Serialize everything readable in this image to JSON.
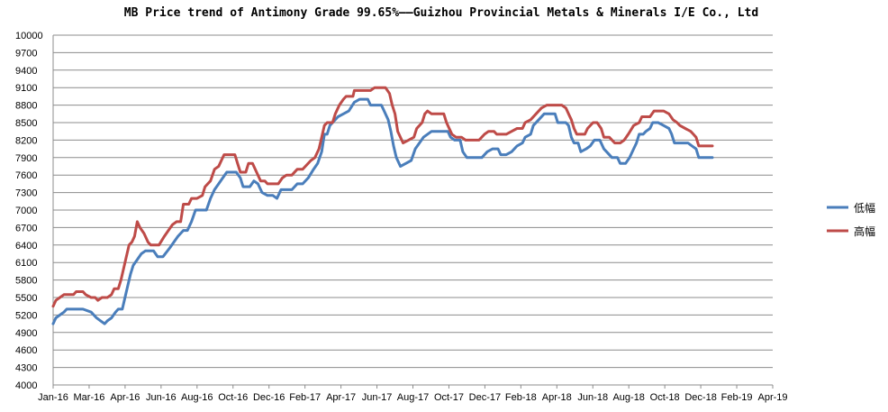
{
  "chart_data": {
    "type": "line",
    "title": "MB Price trend of Antimony Grade 99.65%——Guizhou Provincial Metals & Minerals I/E Co., Ltd",
    "xlabel": "",
    "ylabel": "",
    "ylim": [
      4000,
      10000
    ],
    "yticks": [
      4000,
      4300,
      4600,
      4900,
      5200,
      5500,
      5800,
      6100,
      6400,
      6700,
      7000,
      7300,
      7600,
      7900,
      8200,
      8500,
      8800,
      9100,
      9400,
      9700,
      10000
    ],
    "xticks": [
      "Jan-16",
      "Mar-16",
      "Apr-16",
      "Jun-16",
      "Aug-16",
      "Oct-16",
      "Dec-16",
      "Feb-17",
      "Apr-17",
      "Jun-17",
      "Aug-17",
      "Oct-17",
      "Dec-17",
      "Feb-18",
      "Apr-18",
      "Jun-18",
      "Aug-18",
      "Oct-18",
      "Dec-18",
      "Feb-19",
      "Apr-19"
    ],
    "grid": true,
    "legend_position": "right",
    "series": [
      {
        "name": "低幅",
        "color": "#4a7ebb",
        "points": [
          [
            0,
            5050
          ],
          [
            2,
            5150
          ],
          [
            5,
            5200
          ],
          [
            8,
            5250
          ],
          [
            10,
            5300
          ],
          [
            14,
            5300
          ],
          [
            22,
            5300
          ],
          [
            28,
            5250
          ],
          [
            32,
            5150
          ],
          [
            35,
            5100
          ],
          [
            38,
            5050
          ],
          [
            40,
            5100
          ],
          [
            43,
            5150
          ],
          [
            46,
            5250
          ],
          [
            48,
            5300
          ],
          [
            51,
            5300
          ],
          [
            53,
            5500
          ],
          [
            55,
            5700
          ],
          [
            57,
            5900
          ],
          [
            59,
            6050
          ],
          [
            62,
            6150
          ],
          [
            65,
            6250
          ],
          [
            68,
            6300
          ],
          [
            74,
            6300
          ],
          [
            77,
            6200
          ],
          [
            81,
            6200
          ],
          [
            86,
            6350
          ],
          [
            89,
            6450
          ],
          [
            92,
            6550
          ],
          [
            96,
            6650
          ],
          [
            99,
            6650
          ],
          [
            102,
            6800
          ],
          [
            105,
            7000
          ],
          [
            113,
            7000
          ],
          [
            116,
            7200
          ],
          [
            119,
            7350
          ],
          [
            122,
            7450
          ],
          [
            125,
            7550
          ],
          [
            128,
            7650
          ],
          [
            135,
            7650
          ],
          [
            138,
            7550
          ],
          [
            140,
            7400
          ],
          [
            145,
            7400
          ],
          [
            148,
            7500
          ],
          [
            151,
            7450
          ],
          [
            154,
            7300
          ],
          [
            158,
            7250
          ],
          [
            162,
            7250
          ],
          [
            165,
            7200
          ],
          [
            168,
            7350
          ],
          [
            176,
            7350
          ],
          [
            180,
            7450
          ],
          [
            184,
            7450
          ],
          [
            188,
            7550
          ],
          [
            192,
            7700
          ],
          [
            195,
            7800
          ],
          [
            198,
            8000
          ],
          [
            200,
            8300
          ],
          [
            202,
            8300
          ],
          [
            204,
            8450
          ],
          [
            206,
            8500
          ],
          [
            210,
            8600
          ],
          [
            214,
            8650
          ],
          [
            218,
            8700
          ],
          [
            222,
            8850
          ],
          [
            226,
            8900
          ],
          [
            232,
            8900
          ],
          [
            234,
            8800
          ],
          [
            242,
            8800
          ],
          [
            245,
            8650
          ],
          [
            247,
            8550
          ],
          [
            249,
            8350
          ],
          [
            251,
            8100
          ],
          [
            253,
            7900
          ],
          [
            256,
            7750
          ],
          [
            260,
            7800
          ],
          [
            264,
            7850
          ],
          [
            267,
            8050
          ],
          [
            270,
            8150
          ],
          [
            273,
            8250
          ],
          [
            276,
            8300
          ],
          [
            279,
            8350
          ],
          [
            291,
            8350
          ],
          [
            293,
            8250
          ],
          [
            296,
            8200
          ],
          [
            300,
            8200
          ],
          [
            302,
            8000
          ],
          [
            305,
            7900
          ],
          [
            316,
            7900
          ],
          [
            320,
            8000
          ],
          [
            324,
            8050
          ],
          [
            328,
            8050
          ],
          [
            330,
            7950
          ],
          [
            334,
            7950
          ],
          [
            338,
            8000
          ],
          [
            342,
            8100
          ],
          [
            346,
            8150
          ],
          [
            348,
            8250
          ],
          [
            352,
            8300
          ],
          [
            354,
            8450
          ],
          [
            358,
            8550
          ],
          [
            362,
            8650
          ],
          [
            370,
            8650
          ],
          [
            372,
            8500
          ],
          [
            378,
            8500
          ],
          [
            380,
            8450
          ],
          [
            382,
            8250
          ],
          [
            384,
            8150
          ],
          [
            387,
            8150
          ],
          [
            389,
            8000
          ],
          [
            393,
            8050
          ],
          [
            396,
            8100
          ],
          [
            399,
            8200
          ],
          [
            403,
            8200
          ],
          [
            406,
            8050
          ],
          [
            408,
            8000
          ],
          [
            412,
            7900
          ],
          [
            416,
            7900
          ],
          [
            418,
            7800
          ],
          [
            422,
            7800
          ],
          [
            425,
            7900
          ],
          [
            428,
            8050
          ],
          [
            430,
            8150
          ],
          [
            432,
            8300
          ],
          [
            435,
            8300
          ],
          [
            437,
            8350
          ],
          [
            440,
            8400
          ],
          [
            442,
            8500
          ],
          [
            446,
            8500
          ],
          [
            450,
            8450
          ],
          [
            454,
            8400
          ],
          [
            456,
            8300
          ],
          [
            458,
            8150
          ],
          [
            468,
            8150
          ],
          [
            471,
            8100
          ],
          [
            474,
            8050
          ],
          [
            476,
            7900
          ],
          [
            486,
            7900
          ]
        ]
      },
      {
        "name": "高幅",
        "color": "#be4b48",
        "points": [
          [
            0,
            5350
          ],
          [
            2,
            5450
          ],
          [
            5,
            5500
          ],
          [
            8,
            5550
          ],
          [
            15,
            5550
          ],
          [
            17,
            5600
          ],
          [
            22,
            5600
          ],
          [
            24,
            5550
          ],
          [
            28,
            5500
          ],
          [
            31,
            5500
          ],
          [
            33,
            5450
          ],
          [
            36,
            5500
          ],
          [
            40,
            5500
          ],
          [
            43,
            5550
          ],
          [
            45,
            5650
          ],
          [
            48,
            5650
          ],
          [
            50,
            5800
          ],
          [
            52,
            6000
          ],
          [
            54,
            6200
          ],
          [
            56,
            6400
          ],
          [
            58,
            6450
          ],
          [
            60,
            6550
          ],
          [
            62,
            6800
          ],
          [
            64,
            6700
          ],
          [
            67,
            6600
          ],
          [
            70,
            6450
          ],
          [
            72,
            6400
          ],
          [
            78,
            6400
          ],
          [
            82,
            6550
          ],
          [
            85,
            6650
          ],
          [
            88,
            6750
          ],
          [
            91,
            6800
          ],
          [
            94,
            6800
          ],
          [
            96,
            7100
          ],
          [
            100,
            7100
          ],
          [
            102,
            7200
          ],
          [
            106,
            7200
          ],
          [
            110,
            7250
          ],
          [
            112,
            7400
          ],
          [
            116,
            7500
          ],
          [
            119,
            7700
          ],
          [
            122,
            7750
          ],
          [
            124,
            7850
          ],
          [
            126,
            7950
          ],
          [
            134,
            7950
          ],
          [
            136,
            7800
          ],
          [
            138,
            7650
          ],
          [
            142,
            7650
          ],
          [
            144,
            7800
          ],
          [
            147,
            7800
          ],
          [
            150,
            7650
          ],
          [
            153,
            7500
          ],
          [
            156,
            7500
          ],
          [
            158,
            7450
          ],
          [
            166,
            7450
          ],
          [
            169,
            7550
          ],
          [
            172,
            7600
          ],
          [
            176,
            7600
          ],
          [
            180,
            7700
          ],
          [
            184,
            7700
          ],
          [
            186,
            7750
          ],
          [
            190,
            7850
          ],
          [
            193,
            7900
          ],
          [
            196,
            8050
          ],
          [
            198,
            8250
          ],
          [
            200,
            8450
          ],
          [
            202,
            8500
          ],
          [
            206,
            8500
          ],
          [
            208,
            8650
          ],
          [
            211,
            8800
          ],
          [
            214,
            8900
          ],
          [
            216,
            8950
          ],
          [
            221,
            8950
          ],
          [
            222,
            9050
          ],
          [
            234,
            9050
          ],
          [
            237,
            9100
          ],
          [
            245,
            9100
          ],
          [
            248,
            9000
          ],
          [
            250,
            8800
          ],
          [
            252,
            8650
          ],
          [
            254,
            8350
          ],
          [
            256,
            8250
          ],
          [
            258,
            8150
          ],
          [
            262,
            8200
          ],
          [
            266,
            8250
          ],
          [
            268,
            8400
          ],
          [
            270,
            8450
          ],
          [
            272,
            8500
          ],
          [
            274,
            8650
          ],
          [
            276,
            8700
          ],
          [
            279,
            8650
          ],
          [
            288,
            8650
          ],
          [
            290,
            8500
          ],
          [
            292,
            8400
          ],
          [
            294,
            8300
          ],
          [
            297,
            8250
          ],
          [
            301,
            8250
          ],
          [
            304,
            8200
          ],
          [
            314,
            8200
          ],
          [
            318,
            8300
          ],
          [
            321,
            8350
          ],
          [
            325,
            8350
          ],
          [
            327,
            8300
          ],
          [
            334,
            8300
          ],
          [
            338,
            8350
          ],
          [
            342,
            8400
          ],
          [
            346,
            8400
          ],
          [
            348,
            8500
          ],
          [
            352,
            8550
          ],
          [
            356,
            8650
          ],
          [
            360,
            8750
          ],
          [
            364,
            8800
          ],
          [
            375,
            8800
          ],
          [
            378,
            8750
          ],
          [
            380,
            8650
          ],
          [
            382,
            8550
          ],
          [
            384,
            8400
          ],
          [
            386,
            8300
          ],
          [
            392,
            8300
          ],
          [
            394,
            8400
          ],
          [
            398,
            8500
          ],
          [
            401,
            8500
          ],
          [
            404,
            8400
          ],
          [
            406,
            8250
          ],
          [
            410,
            8250
          ],
          [
            414,
            8150
          ],
          [
            418,
            8150
          ],
          [
            421,
            8200
          ],
          [
            424,
            8300
          ],
          [
            428,
            8450
          ],
          [
            432,
            8500
          ],
          [
            434,
            8600
          ],
          [
            440,
            8600
          ],
          [
            443,
            8700
          ],
          [
            450,
            8700
          ],
          [
            454,
            8650
          ],
          [
            457,
            8550
          ],
          [
            460,
            8500
          ],
          [
            462,
            8450
          ],
          [
            466,
            8400
          ],
          [
            470,
            8350
          ],
          [
            472,
            8300
          ],
          [
            474,
            8250
          ],
          [
            476,
            8100
          ],
          [
            486,
            8100
          ]
        ]
      }
    ]
  }
}
